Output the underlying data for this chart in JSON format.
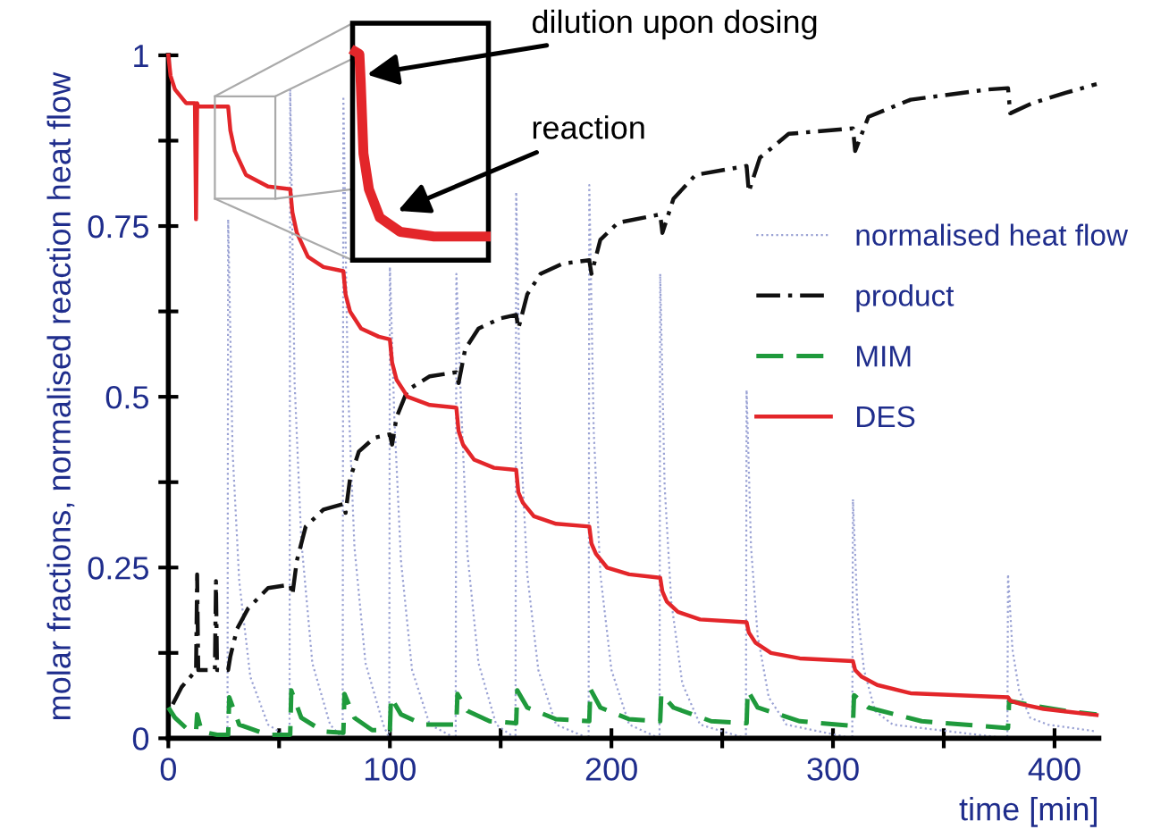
{
  "chart_data": {
    "type": "line",
    "xlabel": "time [min]",
    "ylabel": "molar fractions, normalised reaction heat flow",
    "xlim": [
      0,
      420
    ],
    "ylim": [
      0,
      1
    ],
    "xticks": [
      0,
      {
        "value": 50,
        "label": null
      },
      100,
      {
        "value": 150,
        "label": null
      },
      200,
      {
        "value": 250,
        "label": null
      },
      300,
      {
        "value": 350,
        "label": null
      },
      400
    ],
    "yticks": [
      0,
      {
        "value": 0.125,
        "label": null
      },
      0.25,
      {
        "value": 0.375,
        "label": null
      },
      0.5,
      {
        "value": 0.625,
        "label": null
      },
      0.75,
      {
        "value": 0.875,
        "label": null
      },
      1
    ],
    "grid": false,
    "legend": "right",
    "annotations": [
      "dilution upon dosing",
      "reaction"
    ],
    "series": [
      {
        "name": "normalised heat flow",
        "color": "#9aa2d4",
        "line_style": "dotted",
        "x": [
          0,
          26.7,
          27,
          29,
          32,
          37,
          45,
          54.7,
          55,
          57,
          60,
          65,
          73,
          78.7,
          79,
          81,
          84,
          89,
          97,
          99.7,
          100,
          102,
          105,
          110,
          118,
          129.7,
          130,
          132,
          135,
          140,
          148,
          156.7,
          157,
          159,
          162,
          167,
          175,
          189.7,
          190,
          192,
          195,
          200,
          208,
          221.7,
          222,
          224,
          227,
          232,
          240,
          260.7,
          261,
          263,
          266,
          271,
          279,
          308.7,
          309,
          311,
          314,
          319,
          327,
          378.7,
          379,
          381,
          384,
          389,
          397,
          419
        ],
        "values": [
          0,
          0,
          0.76,
          0.42,
          0.23,
          0.09,
          0.02,
          0,
          0.95,
          0.52,
          0.29,
          0.11,
          0.02,
          0,
          0.94,
          0.52,
          0.28,
          0.11,
          0.02,
          0,
          0.69,
          0.47,
          0.26,
          0.1,
          0.02,
          0,
          0.68,
          0.5,
          0.27,
          0.11,
          0.02,
          0,
          0.8,
          0.44,
          0.24,
          0.1,
          0.02,
          0,
          0.81,
          0.45,
          0.24,
          0.1,
          0.02,
          0,
          0.68,
          0.37,
          0.2,
          0.08,
          0.02,
          0,
          0.51,
          0.28,
          0.15,
          0.06,
          0.02,
          0,
          0.35,
          0.19,
          0.1,
          0.04,
          0.02,
          0,
          0.24,
          0.13,
          0.07,
          0.03,
          0.02,
          0.01
        ]
      },
      {
        "name": "product",
        "color": "#111111",
        "line_style": "dashdot",
        "x": [
          2,
          6,
          10,
          12.5,
          13,
          13.5,
          21,
          21.5,
          22,
          27,
          28,
          31,
          36,
          45,
          55,
          56,
          58,
          62,
          70,
          79,
          80,
          82,
          86,
          93,
          100,
          101,
          103,
          108,
          118,
          130,
          131,
          134,
          140,
          150,
          157,
          158,
          162,
          168,
          178,
          190,
          191,
          195,
          203,
          222,
          223,
          228,
          238,
          261,
          262,
          267,
          280,
          309,
          310,
          316,
          335,
          370,
          379,
          380,
          390,
          405,
          419
        ],
        "values": [
          0.05,
          0.075,
          0.09,
          0.1,
          0.24,
          0.1,
          0.1,
          0.23,
          0.1,
          0.1,
          0.12,
          0.16,
          0.19,
          0.22,
          0.225,
          0.21,
          0.26,
          0.31,
          0.335,
          0.343,
          0.33,
          0.38,
          0.42,
          0.44,
          0.445,
          0.43,
          0.47,
          0.51,
          0.53,
          0.536,
          0.52,
          0.57,
          0.6,
          0.615,
          0.62,
          0.6,
          0.65,
          0.68,
          0.695,
          0.7,
          0.68,
          0.73,
          0.755,
          0.767,
          0.74,
          0.79,
          0.825,
          0.838,
          0.8,
          0.85,
          0.885,
          0.893,
          0.86,
          0.91,
          0.935,
          0.95,
          0.952,
          0.915,
          0.93,
          0.945,
          0.958
        ]
      },
      {
        "name": "MIM",
        "color": "#1f9a3c",
        "line_style": "dashed",
        "x": [
          0,
          3,
          8,
          12.5,
          13,
          15,
          22,
          27,
          27.5,
          32,
          45,
          55,
          55.5,
          60,
          70,
          79,
          79.5,
          84,
          92,
          100,
          100.5,
          105,
          115,
          130,
          130.5,
          135,
          145,
          157,
          157.5,
          162,
          175,
          190,
          190.5,
          195,
          208,
          222,
          222.5,
          228,
          245,
          261,
          261.5,
          266,
          285,
          309,
          309.5,
          316,
          340,
          379,
          379.5,
          390,
          405,
          419
        ],
        "values": [
          0.045,
          0.03,
          0.015,
          0.01,
          0.035,
          0.01,
          0.005,
          0.005,
          0.06,
          0.02,
          0.005,
          0.005,
          0.07,
          0.03,
          0.01,
          0.008,
          0.065,
          0.03,
          0.012,
          0.012,
          0.06,
          0.035,
          0.02,
          0.02,
          0.065,
          0.04,
          0.025,
          0.022,
          0.07,
          0.045,
          0.028,
          0.025,
          0.072,
          0.045,
          0.028,
          0.025,
          0.065,
          0.045,
          0.025,
          0.022,
          0.07,
          0.045,
          0.025,
          0.018,
          0.063,
          0.045,
          0.025,
          0.015,
          0.055,
          0.048,
          0.04,
          0.035
        ]
      },
      {
        "name": "DES",
        "color": "#e3262a",
        "line_style": "solid",
        "x": [
          0,
          1,
          3,
          8,
          12,
          12.5,
          13,
          13.5,
          27,
          28,
          30,
          35,
          45,
          55,
          56,
          58,
          63,
          70,
          79,
          80,
          82,
          87,
          95,
          100,
          101,
          103,
          108,
          118,
          130,
          131,
          133,
          138,
          147,
          157,
          158,
          160,
          165,
          175,
          190,
          191,
          193,
          198,
          208,
          222,
          223,
          225,
          230,
          240,
          261,
          262,
          265,
          272,
          285,
          309,
          310,
          313,
          320,
          335,
          379,
          380,
          385,
          395,
          408,
          419
        ],
        "values": [
          1.0,
          0.97,
          0.95,
          0.93,
          0.93,
          0.76,
          0.93,
          0.925,
          0.925,
          0.89,
          0.86,
          0.825,
          0.808,
          0.804,
          0.77,
          0.74,
          0.705,
          0.69,
          0.684,
          0.65,
          0.625,
          0.6,
          0.588,
          0.584,
          0.55,
          0.525,
          0.5,
          0.488,
          0.484,
          0.45,
          0.43,
          0.408,
          0.396,
          0.393,
          0.36,
          0.345,
          0.325,
          0.314,
          0.31,
          0.285,
          0.27,
          0.25,
          0.24,
          0.235,
          0.215,
          0.2,
          0.185,
          0.174,
          0.17,
          0.155,
          0.14,
          0.125,
          0.117,
          0.113,
          0.1,
          0.09,
          0.078,
          0.066,
          0.06,
          0.055,
          0.05,
          0.043,
          0.038,
          0.034
        ]
      }
    ]
  }
}
